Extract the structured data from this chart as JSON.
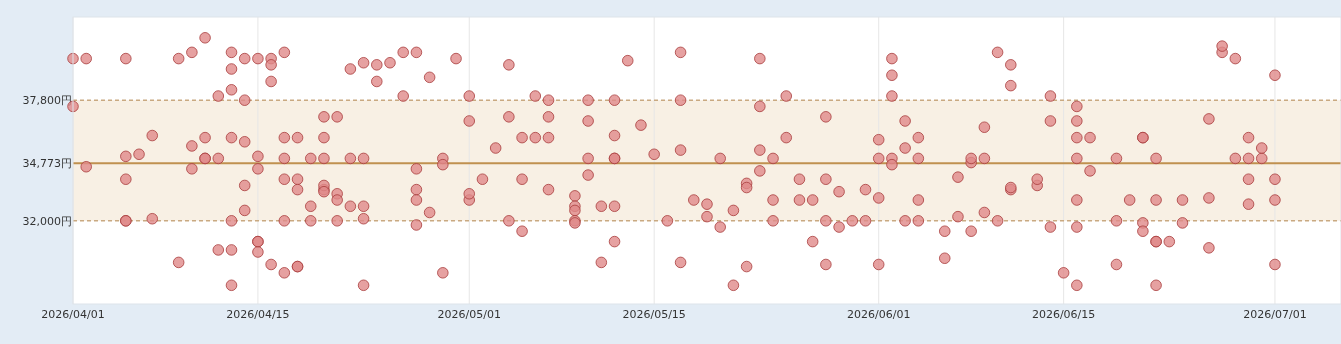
{
  "chart_data": {
    "type": "scatter",
    "x": [
      "2026-04-01",
      "2026-04-02",
      "2026-04-01",
      "2026-04-02",
      "2026-04-05",
      "2026-04-05",
      "2026-04-06",
      "2026-04-05",
      "2026-04-05",
      "2026-04-05",
      "2026-04-07",
      "2026-04-07",
      "2026-04-09",
      "2026-04-09",
      "2026-04-10",
      "2026-04-11",
      "2026-04-10",
      "2026-04-11",
      "2026-04-11",
      "2026-04-11",
      "2026-04-12",
      "2026-04-10",
      "2026-04-12",
      "2026-04-13",
      "2026-04-13",
      "2026-04-13",
      "2026-04-13",
      "2026-04-13",
      "2026-04-12",
      "2026-04-14",
      "2026-04-13",
      "2026-04-14",
      "2026-04-14",
      "2026-04-14",
      "2026-04-13",
      "2026-04-14",
      "2026-04-15",
      "2026-04-15",
      "2026-04-15",
      "2026-04-15",
      "2026-04-15",
      "2026-04-16",
      "2026-04-15",
      "2026-04-16",
      "2026-04-16",
      "2026-04-16",
      "2026-04-17",
      "2026-04-17",
      "2026-04-18",
      "2026-04-18",
      "2026-04-17",
      "2026-04-19",
      "2026-04-21",
      "2026-04-23",
      "2026-04-17",
      "2026-04-18",
      "2026-04-17",
      "2026-04-17",
      "2026-04-18",
      "2026-04-18",
      "2026-04-19",
      "2026-04-19",
      "2026-04-20",
      "2026-04-21",
      "2026-04-20",
      "2026-04-20",
      "2026-04-22",
      "2026-04-23",
      "2026-04-20",
      "2026-04-20",
      "2026-04-20",
      "2026-04-21",
      "2026-04-21",
      "2026-04-22",
      "2026-04-23",
      "2026-04-23",
      "2026-04-22",
      "2026-04-23",
      "2026-04-24",
      "2026-04-24",
      "2026-04-25",
      "2026-04-26",
      "2026-04-27",
      "2026-04-28",
      "2026-04-26",
      "2026-04-30",
      "2026-04-27",
      "2026-04-27",
      "2026-04-27",
      "2026-04-27",
      "2026-04-28",
      "2026-04-29",
      "2026-04-29",
      "2026-04-29",
      "2026-05-01",
      "2026-05-01",
      "2026-05-01",
      "2026-05-01",
      "2026-05-02",
      "2026-05-04",
      "2026-05-04",
      "2026-05-03",
      "2026-05-04",
      "2026-05-05",
      "2026-05-05",
      "2026-05-05",
      "2026-05-06",
      "2026-05-07",
      "2026-05-06",
      "2026-05-07",
      "2026-05-07",
      "2026-05-07",
      "2026-05-09",
      "2026-05-09",
      "2026-05-09",
      "2026-05-09",
      "2026-05-09",
      "2026-05-10",
      "2026-05-10",
      "2026-05-10",
      "2026-05-10",
      "2026-05-11",
      "2026-05-11",
      "2026-05-12",
      "2026-05-12",
      "2026-05-12",
      "2026-05-12",
      "2026-05-12",
      "2026-05-12",
      "2026-05-13",
      "2026-05-14",
      "2026-05-15",
      "2026-05-16",
      "2026-05-17",
      "2026-05-17",
      "2026-05-17",
      "2026-05-17",
      "2026-05-18",
      "2026-05-19",
      "2026-05-19",
      "2026-05-20",
      "2026-05-20",
      "2026-05-21",
      "2026-05-21",
      "2026-05-22",
      "2026-05-23",
      "2026-05-23",
      "2026-05-22",
      "2026-05-22",
      "2026-05-23",
      "2026-05-23",
      "2026-05-24",
      "2026-05-24",
      "2026-05-24",
      "2026-05-25",
      "2026-05-25",
      "2026-05-26",
      "2026-05-26",
      "2026-05-27",
      "2026-05-27",
      "2026-05-28",
      "2026-05-28",
      "2026-05-28",
      "2026-05-28",
      "2026-05-29",
      "2026-05-29",
      "2026-05-30",
      "2026-05-31",
      "2026-05-31",
      "2026-06-01",
      "2026-06-01",
      "2026-06-01",
      "2026-06-01",
      "2026-06-02",
      "2026-06-02",
      "2026-06-02",
      "2026-06-03",
      "2026-06-02",
      "2026-06-02",
      "2026-06-03",
      "2026-06-04",
      "2026-06-04",
      "2026-06-04",
      "2026-06-03",
      "2026-06-04",
      "2026-06-06",
      "2026-06-06",
      "2026-06-07",
      "2026-06-07",
      "2026-06-08",
      "2026-06-08",
      "2026-06-08",
      "2026-06-09",
      "2026-06-09",
      "2026-06-09",
      "2026-06-10",
      "2026-06-10",
      "2026-06-11",
      "2026-06-11",
      "2026-06-11",
      "2026-06-11",
      "2026-06-13",
      "2026-06-13",
      "2026-06-14",
      "2026-06-14",
      "2026-06-14",
      "2026-06-15",
      "2026-06-16",
      "2026-06-16",
      "2026-06-16",
      "2026-06-16",
      "2026-06-17",
      "2026-06-16",
      "2026-06-16",
      "2026-06-16",
      "2026-06-17",
      "2026-06-19",
      "2026-06-19",
      "2026-06-19",
      "2026-06-20",
      "2026-06-21",
      "2026-06-21",
      "2026-06-22",
      "2026-06-21",
      "2026-06-21",
      "2026-06-22",
      "2026-06-22",
      "2026-06-23",
      "2026-06-22",
      "2026-06-22",
      "2026-06-24",
      "2026-06-24",
      "2026-06-26",
      "2026-06-26",
      "2026-06-26",
      "2026-06-27",
      "2026-06-27",
      "2026-06-28",
      "2026-06-29",
      "2026-06-28",
      "2026-06-29",
      "2026-06-30",
      "2026-06-30",
      "2026-06-29",
      "2026-07-01",
      "2026-06-29",
      "2026-07-01",
      "2026-07-01",
      "2026-07-01"
    ],
    "series": [
      {
        "color": "#e08a8a",
        "values": [
          39800,
          39800,
          37500,
          34600,
          39800,
          35100,
          35200,
          34000,
          32000,
          32000,
          36100,
          32100,
          30000,
          39800,
          40100,
          40800,
          35600,
          36000,
          35000,
          35000,
          35000,
          34500,
          30600,
          30600,
          28900,
          40100,
          39300,
          38300,
          38000,
          37800,
          36000,
          35800,
          33700,
          32500,
          32000,
          39800,
          35100,
          34500,
          31000,
          31000,
          30500,
          29900,
          39800,
          39800,
          39500,
          38700,
          40100,
          29500,
          29800,
          29800,
          32000,
          32000,
          32000,
          32100,
          36000,
          36000,
          35000,
          34000,
          34000,
          33500,
          32700,
          35000,
          37000,
          37000,
          36000,
          35000,
          35000,
          35000,
          33500,
          33700,
          33400,
          33300,
          33000,
          32700,
          32700,
          28900,
          39300,
          39600,
          38700,
          39500,
          39600,
          40100,
          40100,
          38900,
          38000,
          39800,
          34500,
          33500,
          33000,
          31800,
          32400,
          35000,
          34700,
          29500,
          33000,
          38000,
          36800,
          33300,
          34000,
          39500,
          37000,
          35500,
          32000,
          31500,
          34000,
          36000,
          36000,
          36000,
          38000,
          37800,
          37000,
          33500,
          33200,
          32700,
          32500,
          32000,
          31900,
          37800,
          36800,
          35000,
          34200,
          32700,
          30000,
          32700,
          31000,
          37800,
          36100,
          35000,
          35000,
          39700,
          36600,
          35200,
          32000,
          40100,
          35400,
          37800,
          30000,
          33000,
          32800,
          32200,
          31700,
          35000,
          32500,
          28900,
          29800,
          35400,
          34400,
          33800,
          33600,
          37500,
          39800,
          33000,
          32000,
          35000,
          38000,
          36000,
          34000,
          33000,
          33000,
          31000,
          37000,
          34000,
          32000,
          29900,
          31700,
          33400,
          32000,
          32000,
          33500,
          35000,
          35900,
          33100,
          29900,
          39800,
          39000,
          38000,
          36800,
          35000,
          34700,
          35500,
          36000,
          35000,
          33000,
          32000,
          32000,
          31500,
          30200,
          34100,
          32200,
          31500,
          34800,
          35000,
          35000,
          36500,
          32400,
          32000,
          40100,
          39500,
          38500,
          33500,
          33600,
          33700,
          34000,
          38000,
          36800,
          31700,
          29500,
          28900,
          37500,
          36800,
          36000,
          36000,
          35000,
          33000,
          31700,
          34400,
          35000,
          32000,
          29900,
          33000,
          36000,
          36000,
          35000,
          31900,
          31500,
          31000,
          31000,
          31000,
          28900,
          33000,
          33000,
          31900,
          33100,
          36900,
          30700,
          40100,
          40400,
          39800,
          36000,
          35000,
          35000,
          35000,
          35500,
          34000,
          34000,
          32800,
          33000,
          39000,
          29900
        ]
      }
    ],
    "xlim": [
      "2026-04-01",
      "2026-07-06"
    ],
    "xticks": [
      {
        "value": "2026-04-01",
        "label": "2026/04/01"
      },
      {
        "value": "2026-04-15",
        "label": "2026/04/15"
      },
      {
        "value": "2026-05-01",
        "label": "2026/05/01"
      },
      {
        "value": "2026-05-15",
        "label": "2026/05/15"
      },
      {
        "value": "2026-06-01",
        "label": "2026/06/01"
      },
      {
        "value": "2026-06-15",
        "label": "2026/06/15"
      },
      {
        "value": "2026-07-01",
        "label": "2026/07/01"
      }
    ],
    "ylim": [
      28000,
      41800
    ],
    "yticks": [
      {
        "value": 32000,
        "label": "32,000円"
      },
      {
        "value": 34773,
        "label": "34,773円"
      },
      {
        "value": 37800,
        "label": "37,800円"
      }
    ],
    "grid": "x",
    "marker": "circle",
    "bands": [
      {
        "axis": "y",
        "from": 32000,
        "to": 37800,
        "color": "#f8f0e4"
      }
    ],
    "ref_lines": [
      {
        "axis": "y",
        "value": 37800,
        "color": "#c9a981",
        "line_style": "dashed"
      },
      {
        "axis": "y",
        "value": 34773,
        "color": "#c0914f",
        "line_style": "solid"
      },
      {
        "axis": "y",
        "value": 32000,
        "color": "#c9a981",
        "line_style": "dashed"
      }
    ]
  }
}
